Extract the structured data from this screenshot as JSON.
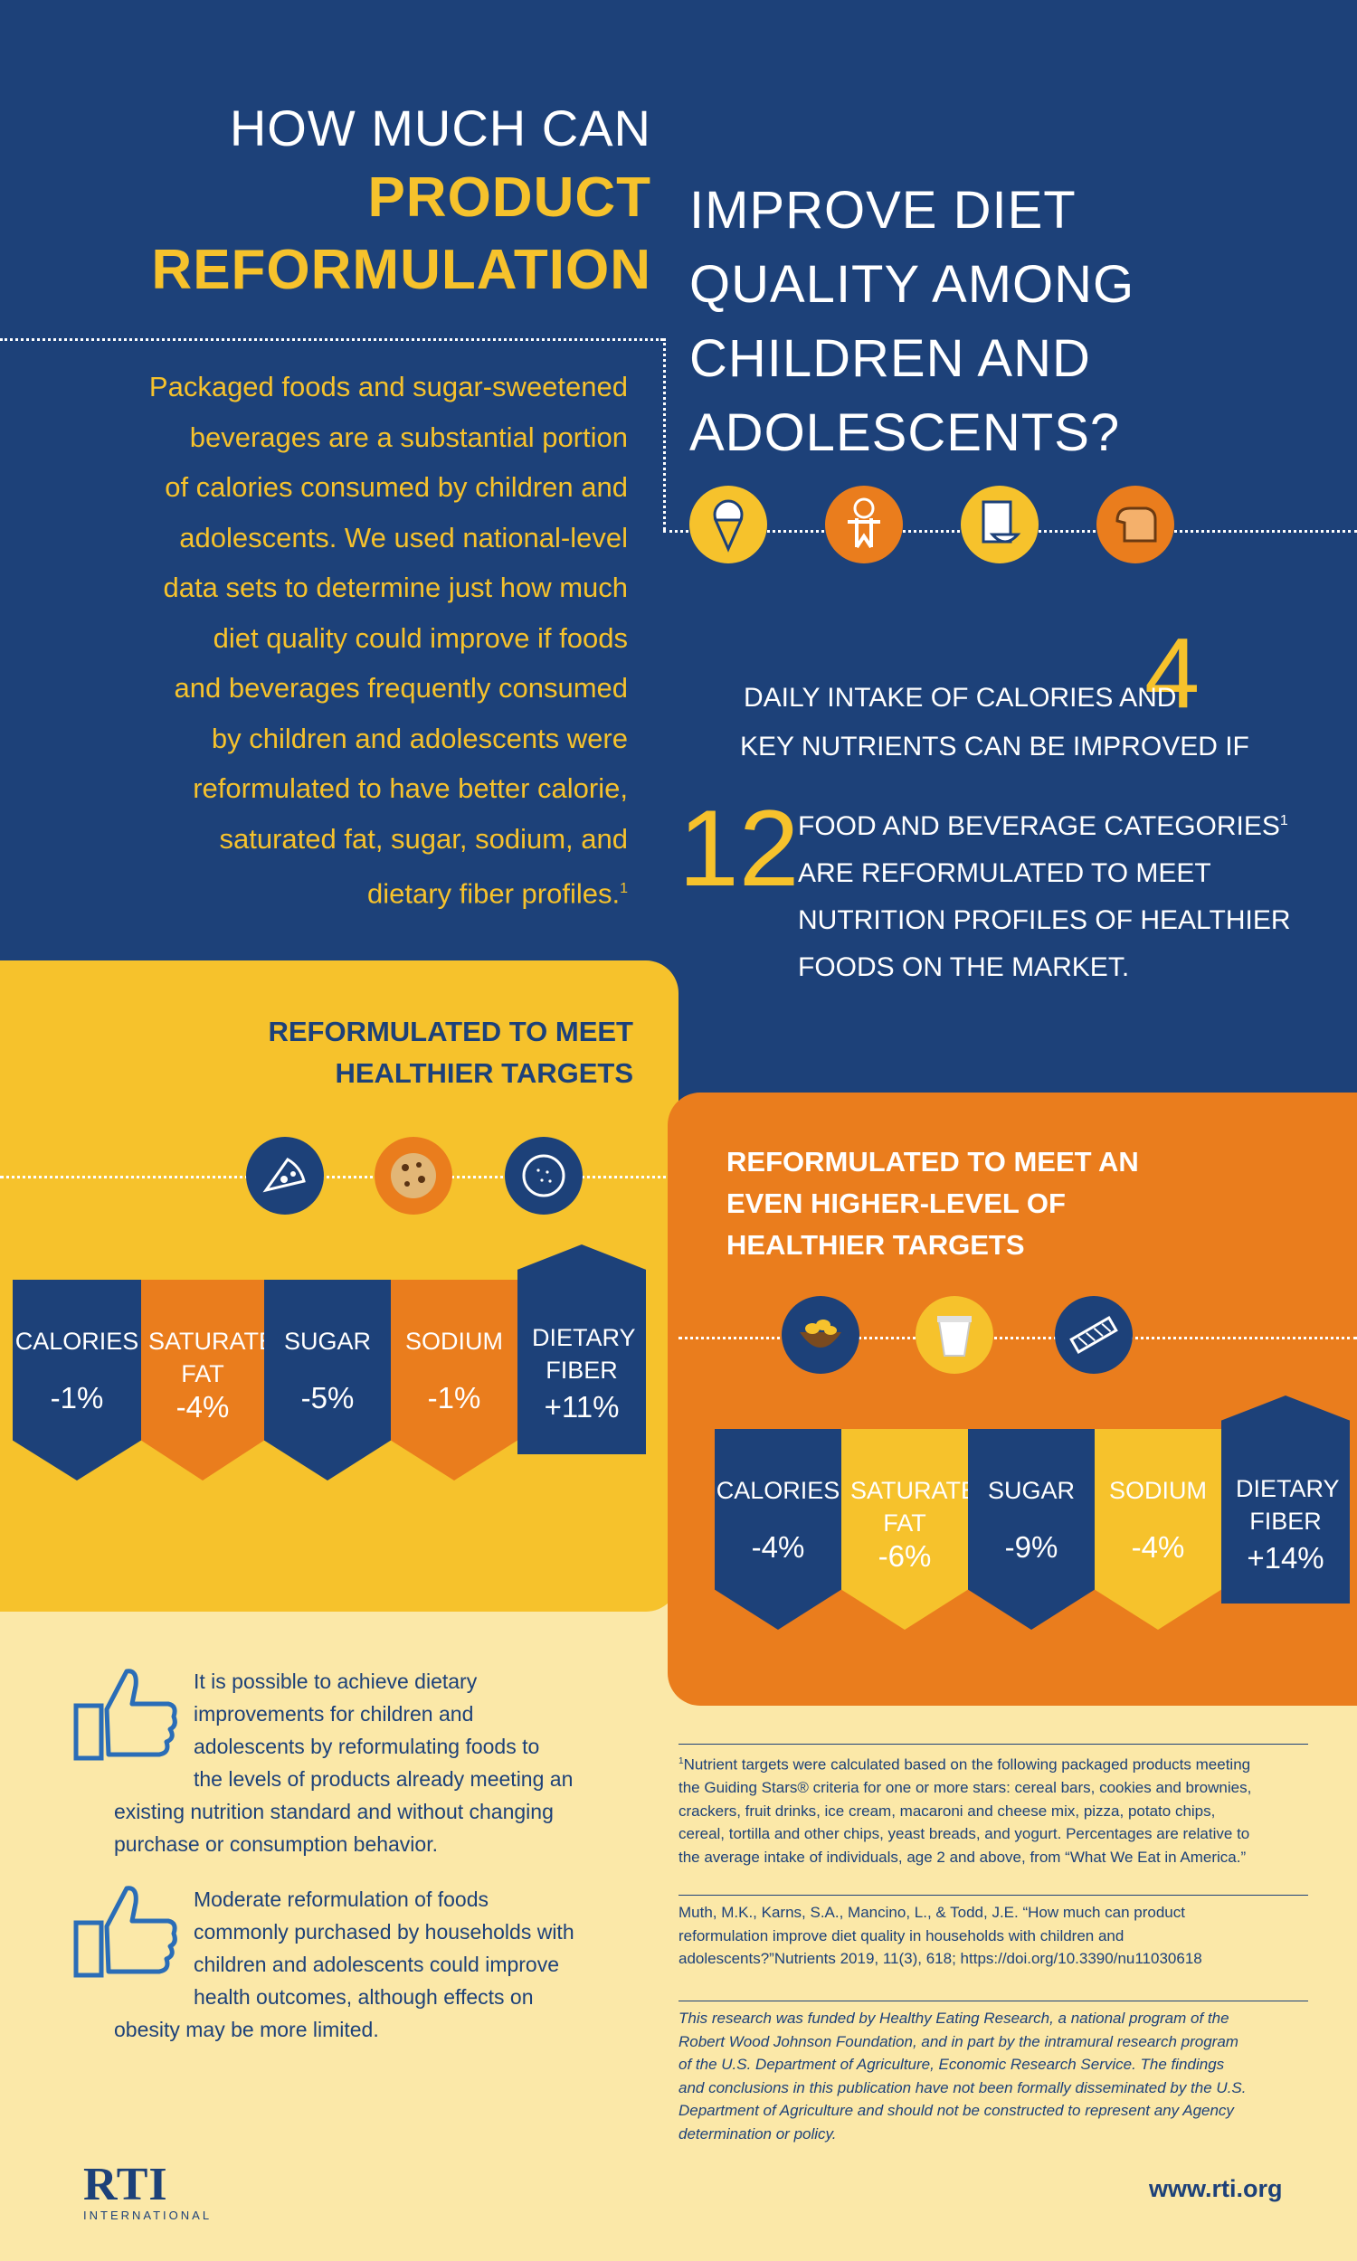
{
  "title": {
    "line1": "HOW MUCH CAN",
    "line2": "PRODUCT",
    "line3": "REFORMULATION",
    "right_lines": [
      "IMPROVE DIET",
      "QUALITY AMONG",
      "CHILDREN AND",
      "ADOLESCENTS?"
    ]
  },
  "intro_lines": [
    "Packaged foods and sugar-sweetened",
    "beverages are a substantial portion",
    "of calories consumed by children and",
    "adolescents. We used national-level",
    "data sets to determine just how much",
    "diet quality could improve if foods",
    "and beverages frequently consumed",
    "by children and adolescents were",
    "reformulated to have better calorie,",
    "saturated fat, sugar, sodium, and",
    "dietary fiber profiles."
  ],
  "intro_footnote_mark": "1",
  "top_icons": [
    "ice-cream-cone-icon",
    "gingerbread-man-icon",
    "cereal-box-icon",
    "bread-loaf-icon"
  ],
  "stats": {
    "nutrients_number": "4",
    "nutrients_line1": "DAILY INTAKE OF CALORIES AND",
    "nutrients_line2": "KEY NUTRIENTS CAN BE IMPROVED IF",
    "categories_number": "12",
    "categories_lines": [
      "FOOD AND BEVERAGE CATEGORIES",
      "ARE REFORMULATED TO MEET",
      "NUTRITION PROFILES OF HEALTHIER",
      "FOODS ON THE MARKET."
    ],
    "categories_footnote_mark": "1"
  },
  "healthier": {
    "title_lines": [
      "REFORMULATED TO MEET",
      "HEALTHIER TARGETS"
    ],
    "icons": [
      "pizza-slice-icon",
      "cookie-icon",
      "tortilla-icon"
    ],
    "items": [
      {
        "label": "CALORIES",
        "value": "-1%"
      },
      {
        "label": "SATURATED FAT",
        "value": "-4%"
      },
      {
        "label": "SUGAR",
        "value": "-5%"
      },
      {
        "label": "SODIUM",
        "value": "-1%"
      },
      {
        "label": "DIETARY FIBER",
        "value": "+11%"
      }
    ]
  },
  "higher": {
    "title_lines": [
      "REFORMULATED TO MEET AN",
      "EVEN HIGHER-LEVEL OF",
      "HEALTHIER TARGETS"
    ],
    "icons": [
      "chips-bowl-icon",
      "yogurt-cup-icon",
      "cereal-bar-icon"
    ],
    "items": [
      {
        "label": "CALORIES",
        "value": "-4%"
      },
      {
        "label": "SATURATED FAT",
        "value": "-6%"
      },
      {
        "label": "SUGAR",
        "value": "-9%"
      },
      {
        "label": "SODIUM",
        "value": "-4%"
      },
      {
        "label": "DIETARY FIBER",
        "value": "+14%"
      }
    ]
  },
  "findings": [
    {
      "icon": "thumbs-up-icon",
      "lines": [
        "It is possible to achieve dietary",
        "improvements for children and",
        "adolescents by reformulating foods to",
        "the levels of products already meeting an",
        "existing nutrition standard and without changing",
        "purchase or consumption behavior."
      ]
    },
    {
      "icon": "thumbs-up-icon",
      "lines": [
        "Moderate reformulation of foods",
        "commonly purchased by households with",
        "children and adolescents could improve",
        "health outcomes, although effects on",
        "obesity may be more limited."
      ]
    }
  ],
  "footnote": {
    "mark": "1",
    "lines": [
      "Nutrient targets were calculated based on the following packaged products meeting",
      "the Guiding Stars® criteria for one or more stars: cereal bars, cookies and brownies,",
      "crackers, fruit drinks, ice cream, macaroni and cheese mix, pizza, potato chips,",
      "cereal, tortilla and other chips, yeast breads, and yogurt. Percentages are relative to",
      "the average intake of individuals, age 2 and above, from “What We Eat in America.”"
    ]
  },
  "citation": {
    "lines": [
      "Muth, M.K., Karns, S.A., Mancino, L., & Todd, J.E. “How much can product",
      "reformulation improve diet quality in households with children and",
      "adolescents?”Nutrients 2019, 11(3), 618; https://doi.org/10.3390/nu11030618"
    ]
  },
  "funding": {
    "lines": [
      "This research was funded by Healthy Eating Research, a national program of the",
      "Robert Wood Johnson Foundation, and in part by the intramural research program",
      "of the U.S. Department of Agriculture, Economic Research Service. The findings",
      "and conclusions in this publication have not been formally disseminated by the U.S.",
      "Department of Agriculture and should not be constructed to represent any Agency",
      "determination or policy."
    ]
  },
  "logo": {
    "name": "RTI",
    "subtitle": "INTERNATIONAL"
  },
  "website": "www.rti.org",
  "colors": {
    "navy": "#1d4179",
    "gold": "#f6c22c",
    "orange": "#ea7d1d",
    "cream": "#fbe8a8"
  }
}
